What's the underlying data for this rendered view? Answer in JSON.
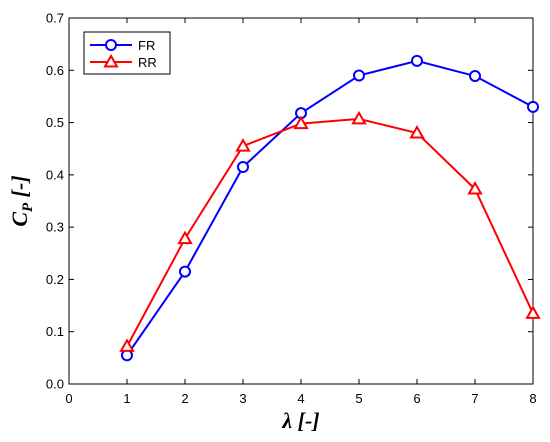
{
  "chart_data": {
    "type": "line",
    "x": [
      1,
      2,
      3,
      4,
      5,
      6,
      7,
      8
    ],
    "series": [
      {
        "name": "FR",
        "values": [
          0.055,
          0.215,
          0.415,
          0.518,
          0.59,
          0.618,
          0.589,
          0.53
        ],
        "color": "#0000ff",
        "marker": "circle"
      },
      {
        "name": "RR",
        "values": [
          0.072,
          0.278,
          0.455,
          0.498,
          0.507,
          0.48,
          0.373,
          0.135
        ],
        "color": "#ff0000",
        "marker": "triangle"
      }
    ],
    "xlabel": "λ [-]",
    "ylabel_main": "C",
    "ylabel_sub": "P",
    "ylabel_suffix": " [-]",
    "xlim": [
      0,
      8
    ],
    "ylim": [
      0,
      0.7
    ],
    "xticks": [
      "0",
      "1",
      "2",
      "3",
      "4",
      "5",
      "6",
      "7",
      "8"
    ],
    "yticks": [
      "0.0",
      "0.1",
      "0.2",
      "0.3",
      "0.4",
      "0.5",
      "0.6",
      "0.7"
    ],
    "grid": false,
    "legend_position": "top-left"
  }
}
